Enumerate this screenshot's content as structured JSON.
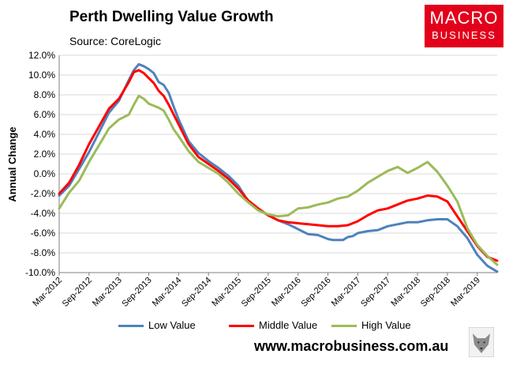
{
  "header": {
    "title": "Perth Dwelling Value Growth",
    "subtitle": "Source: CoreLogic",
    "logo_top": "MACRO",
    "logo_bottom": "BUSINESS"
  },
  "footer": {
    "website": "www.macrobusiness.com.au"
  },
  "colors": {
    "low": "#4f81bd",
    "middle": "#ff0000",
    "high": "#9bbb59",
    "logo_bg": "#e3001b",
    "grid": "#d9d9d9"
  },
  "chart_data": {
    "type": "line",
    "title": "Perth Dwelling Value Growth",
    "subtitle": "Source: CoreLogic",
    "xlabel": "",
    "ylabel": "Annual Change",
    "ylim": [
      -10,
      12
    ],
    "y_ticks": [
      12,
      10,
      8,
      6,
      4,
      2,
      0,
      -2,
      -4,
      -6,
      -8,
      -10
    ],
    "y_tick_labels": [
      "12.0%",
      "10.0%",
      "8.0%",
      "6.0%",
      "4.0%",
      "2.0%",
      "0.0%",
      "-2.0%",
      "-4.0%",
      "-6.0%",
      "-8.0%",
      "-10.0%"
    ],
    "x_range_months": [
      0,
      88
    ],
    "x_ticks": [
      0,
      6,
      12,
      18,
      24,
      30,
      36,
      42,
      48,
      54,
      60,
      66,
      72,
      78,
      84
    ],
    "x_tick_labels": [
      "Mar-2012",
      "Sep-2012",
      "Mar-2013",
      "Sep-2013",
      "Mar-2014",
      "Sep-2014",
      "Mar-2015",
      "Sep-2015",
      "Mar-2016",
      "Sep-2016",
      "Mar-2017",
      "Sep-2017",
      "Mar-2018",
      "Sep-2018",
      "Mar-2019"
    ],
    "legend_position": "bottom",
    "grid": "horizontal",
    "series": [
      {
        "name": "Low Value",
        "key": "low",
        "points": [
          [
            0,
            -2.2
          ],
          [
            2,
            -1.2
          ],
          [
            4,
            0.5
          ],
          [
            6,
            2.2
          ],
          [
            8,
            4.2
          ],
          [
            10,
            6.2
          ],
          [
            12,
            7.4
          ],
          [
            14,
            9.5
          ],
          [
            15,
            10.5
          ],
          [
            16,
            11.1
          ],
          [
            17,
            10.9
          ],
          [
            18,
            10.6
          ],
          [
            19,
            10.2
          ],
          [
            20,
            9.3
          ],
          [
            21,
            9.0
          ],
          [
            22,
            8.2
          ],
          [
            23,
            6.8
          ],
          [
            24,
            5.5
          ],
          [
            26,
            3.3
          ],
          [
            28,
            2.1
          ],
          [
            30,
            1.3
          ],
          [
            32,
            0.6
          ],
          [
            34,
            -0.2
          ],
          [
            36,
            -1.2
          ],
          [
            38,
            -2.8
          ],
          [
            40,
            -3.6
          ],
          [
            42,
            -4.2
          ],
          [
            44,
            -4.7
          ],
          [
            46,
            -5.1
          ],
          [
            48,
            -5.6
          ],
          [
            50,
            -6.1
          ],
          [
            52,
            -6.2
          ],
          [
            54,
            -6.6
          ],
          [
            55,
            -6.7
          ],
          [
            56,
            -6.7
          ],
          [
            57,
            -6.7
          ],
          [
            58,
            -6.4
          ],
          [
            59,
            -6.3
          ],
          [
            60,
            -6.0
          ],
          [
            62,
            -5.8
          ],
          [
            64,
            -5.7
          ],
          [
            66,
            -5.3
          ],
          [
            68,
            -5.1
          ],
          [
            70,
            -4.9
          ],
          [
            72,
            -4.9
          ],
          [
            74,
            -4.7
          ],
          [
            76,
            -4.6
          ],
          [
            78,
            -4.6
          ],
          [
            80,
            -5.3
          ],
          [
            82,
            -6.5
          ],
          [
            84,
            -8.2
          ],
          [
            86,
            -9.3
          ],
          [
            88,
            -9.9
          ]
        ]
      },
      {
        "name": "Middle Value",
        "key": "middle",
        "points": [
          [
            0,
            -2.0
          ],
          [
            2,
            -0.9
          ],
          [
            4,
            0.9
          ],
          [
            6,
            3.0
          ],
          [
            8,
            4.8
          ],
          [
            10,
            6.6
          ],
          [
            12,
            7.6
          ],
          [
            14,
            9.3
          ],
          [
            15,
            10.3
          ],
          [
            16,
            10.5
          ],
          [
            17,
            10.2
          ],
          [
            18,
            9.7
          ],
          [
            19,
            9.2
          ],
          [
            20,
            8.4
          ],
          [
            21,
            7.9
          ],
          [
            22,
            7.0
          ],
          [
            23,
            6.0
          ],
          [
            24,
            5.0
          ],
          [
            26,
            3.0
          ],
          [
            28,
            1.7
          ],
          [
            30,
            1.0
          ],
          [
            32,
            0.3
          ],
          [
            34,
            -0.5
          ],
          [
            36,
            -1.5
          ],
          [
            38,
            -2.7
          ],
          [
            40,
            -3.5
          ],
          [
            42,
            -4.2
          ],
          [
            44,
            -4.7
          ],
          [
            46,
            -4.9
          ],
          [
            48,
            -5.0
          ],
          [
            50,
            -5.1
          ],
          [
            52,
            -5.2
          ],
          [
            54,
            -5.3
          ],
          [
            56,
            -5.3
          ],
          [
            58,
            -5.2
          ],
          [
            60,
            -4.8
          ],
          [
            62,
            -4.2
          ],
          [
            64,
            -3.7
          ],
          [
            66,
            -3.5
          ],
          [
            68,
            -3.1
          ],
          [
            70,
            -2.7
          ],
          [
            72,
            -2.5
          ],
          [
            74,
            -2.2
          ],
          [
            76,
            -2.3
          ],
          [
            78,
            -2.8
          ],
          [
            80,
            -4.3
          ],
          [
            82,
            -5.8
          ],
          [
            84,
            -7.3
          ],
          [
            86,
            -8.4
          ],
          [
            88,
            -8.8
          ]
        ]
      },
      {
        "name": "High Value",
        "key": "high",
        "points": [
          [
            0,
            -3.5
          ],
          [
            2,
            -1.9
          ],
          [
            4,
            -0.7
          ],
          [
            6,
            1.2
          ],
          [
            8,
            2.9
          ],
          [
            10,
            4.6
          ],
          [
            12,
            5.5
          ],
          [
            14,
            6.0
          ],
          [
            15,
            7.0
          ],
          [
            16,
            7.9
          ],
          [
            17,
            7.6
          ],
          [
            18,
            7.1
          ],
          [
            19,
            6.9
          ],
          [
            20,
            6.7
          ],
          [
            21,
            6.4
          ],
          [
            22,
            5.5
          ],
          [
            23,
            4.5
          ],
          [
            24,
            3.8
          ],
          [
            26,
            2.3
          ],
          [
            28,
            1.2
          ],
          [
            30,
            0.6
          ],
          [
            32,
            0.0
          ],
          [
            34,
            -0.9
          ],
          [
            36,
            -2.0
          ],
          [
            38,
            -2.9
          ],
          [
            40,
            -3.7
          ],
          [
            42,
            -4.1
          ],
          [
            44,
            -4.3
          ],
          [
            46,
            -4.2
          ],
          [
            48,
            -3.5
          ],
          [
            50,
            -3.4
          ],
          [
            52,
            -3.1
          ],
          [
            54,
            -2.9
          ],
          [
            56,
            -2.5
          ],
          [
            58,
            -2.3
          ],
          [
            60,
            -1.7
          ],
          [
            62,
            -0.9
          ],
          [
            64,
            -0.3
          ],
          [
            66,
            0.3
          ],
          [
            68,
            0.7
          ],
          [
            70,
            0.1
          ],
          [
            72,
            0.6
          ],
          [
            74,
            1.2
          ],
          [
            76,
            0.2
          ],
          [
            78,
            -1.2
          ],
          [
            80,
            -2.8
          ],
          [
            82,
            -5.5
          ],
          [
            84,
            -7.2
          ],
          [
            86,
            -8.3
          ],
          [
            88,
            -9.2
          ]
        ]
      }
    ]
  }
}
